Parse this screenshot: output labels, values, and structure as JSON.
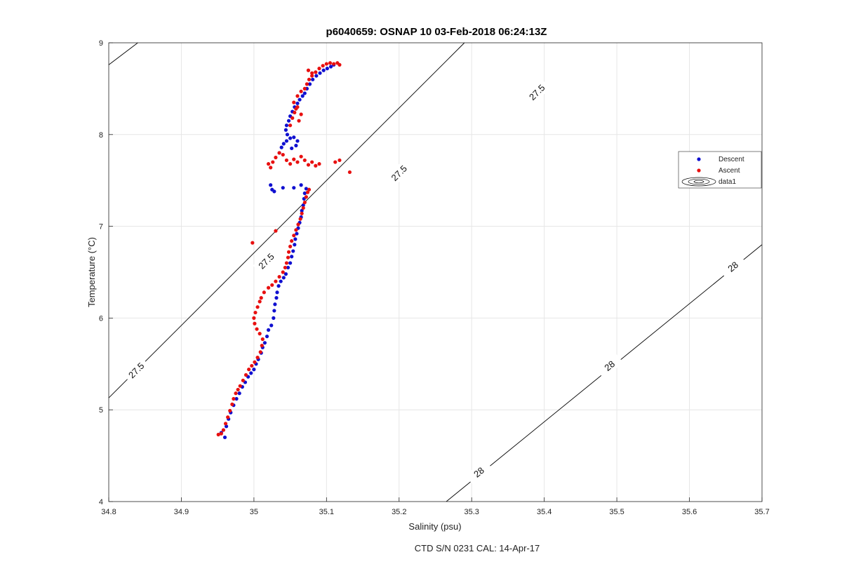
{
  "colors": {
    "descent": "#1010d0",
    "ascent": "#e81010",
    "contour": "#000000",
    "grid": "#e6e6e6",
    "axes": "#262626"
  },
  "footer": "CTD S/N 0231  CAL: 14-Apr-17",
  "chart_data": {
    "type": "scatter",
    "title": "p6040659: OSNAP 10 03-Feb-2018 06:24:13Z",
    "xlabel": "Salinity (psu)",
    "ylabel": "Temperature (°C)",
    "xlim": [
      34.8,
      35.7
    ],
    "ylim": [
      4,
      9
    ],
    "xticks": [
      "34.8",
      "34.9",
      "35",
      "35.1",
      "35.2",
      "35.3",
      "35.4",
      "35.5",
      "35.6",
      "35.7"
    ],
    "yticks": [
      "4",
      "5",
      "6",
      "7",
      "8",
      "9"
    ],
    "grid": true,
    "legend_placement": "right",
    "legend": [
      "Descent",
      "Ascent",
      "data1"
    ],
    "series": [
      {
        "name": "Descent",
        "marker": "dot",
        "points": [
          [
            34.96,
            4.7
          ],
          [
            34.955,
            4.75
          ],
          [
            34.962,
            4.82
          ],
          [
            34.965,
            4.9
          ],
          [
            34.968,
            4.97
          ],
          [
            34.972,
            5.05
          ],
          [
            34.976,
            5.12
          ],
          [
            34.98,
            5.18
          ],
          [
            34.984,
            5.25
          ],
          [
            34.988,
            5.3
          ],
          [
            34.992,
            5.36
          ],
          [
            34.996,
            5.4
          ],
          [
            35.0,
            5.44
          ],
          [
            35.003,
            5.5
          ],
          [
            35.006,
            5.55
          ],
          [
            35.01,
            5.62
          ],
          [
            35.012,
            5.68
          ],
          [
            35.015,
            5.73
          ],
          [
            35.018,
            5.8
          ],
          [
            35.02,
            5.87
          ],
          [
            35.024,
            5.92
          ],
          [
            35.027,
            6.0
          ],
          [
            35.028,
            6.08
          ],
          [
            35.029,
            6.15
          ],
          [
            35.031,
            6.22
          ],
          [
            35.032,
            6.28
          ],
          [
            35.034,
            6.35
          ],
          [
            35.037,
            6.4
          ],
          [
            35.041,
            6.44
          ],
          [
            35.044,
            6.48
          ],
          [
            35.047,
            6.55
          ],
          [
            35.05,
            6.6
          ],
          [
            35.052,
            6.67
          ],
          [
            35.054,
            6.73
          ],
          [
            35.056,
            6.8
          ],
          [
            35.057,
            6.86
          ],
          [
            35.059,
            6.92
          ],
          [
            35.061,
            6.98
          ],
          [
            35.063,
            7.04
          ],
          [
            35.065,
            7.1
          ],
          [
            35.066,
            7.17
          ],
          [
            35.068,
            7.23
          ],
          [
            35.069,
            7.3
          ],
          [
            35.07,
            7.36
          ],
          [
            35.072,
            7.41
          ],
          [
            35.065,
            7.45
          ],
          [
            35.055,
            7.42
          ],
          [
            35.04,
            7.42
          ],
          [
            35.025,
            7.4
          ],
          [
            35.023,
            7.45
          ],
          [
            35.028,
            7.38
          ],
          [
            35.035,
            7.8
          ],
          [
            35.038,
            7.86
          ],
          [
            35.041,
            7.9
          ],
          [
            35.045,
            7.93
          ],
          [
            35.05,
            7.96
          ],
          [
            35.055,
            7.97
          ],
          [
            35.06,
            7.93
          ],
          [
            35.058,
            7.88
          ],
          [
            35.052,
            7.85
          ],
          [
            35.046,
            8.0
          ],
          [
            35.044,
            8.05
          ],
          [
            35.045,
            8.1
          ],
          [
            35.048,
            8.15
          ],
          [
            35.05,
            8.2
          ],
          [
            35.053,
            8.25
          ],
          [
            35.056,
            8.3
          ],
          [
            35.06,
            8.34
          ],
          [
            35.063,
            8.38
          ],
          [
            35.067,
            8.42
          ],
          [
            35.07,
            8.45
          ],
          [
            35.073,
            8.5
          ],
          [
            35.077,
            8.55
          ],
          [
            35.081,
            8.6
          ],
          [
            35.086,
            8.64
          ],
          [
            35.091,
            8.67
          ],
          [
            35.096,
            8.7
          ],
          [
            35.101,
            8.72
          ],
          [
            35.106,
            8.74
          ],
          [
            35.11,
            8.76
          ]
        ]
      },
      {
        "name": "Ascent",
        "marker": "dot",
        "points": [
          [
            34.951,
            4.73
          ],
          [
            34.955,
            4.74
          ],
          [
            34.958,
            4.78
          ],
          [
            34.961,
            4.85
          ],
          [
            34.964,
            4.92
          ],
          [
            34.967,
            4.99
          ],
          [
            34.97,
            5.06
          ],
          [
            34.972,
            5.12
          ],
          [
            34.975,
            5.18
          ],
          [
            34.978,
            5.22
          ],
          [
            34.981,
            5.26
          ],
          [
            34.985,
            5.32
          ],
          [
            34.989,
            5.38
          ],
          [
            34.993,
            5.44
          ],
          [
            34.997,
            5.48
          ],
          [
            35.001,
            5.52
          ],
          [
            35.005,
            5.57
          ],
          [
            35.009,
            5.63
          ],
          [
            35.011,
            5.7
          ],
          [
            35.012,
            5.77
          ],
          [
            35.008,
            5.83
          ],
          [
            35.004,
            5.88
          ],
          [
            35.001,
            5.94
          ],
          [
            35.0,
            6.0
          ],
          [
            35.002,
            6.06
          ],
          [
            35.005,
            6.12
          ],
          [
            35.008,
            6.18
          ],
          [
            35.01,
            6.22
          ],
          [
            35.014,
            6.28
          ],
          [
            35.02,
            6.33
          ],
          [
            35.025,
            6.36
          ],
          [
            35.03,
            6.4
          ],
          [
            35.035,
            6.45
          ],
          [
            35.04,
            6.5
          ],
          [
            35.043,
            6.55
          ],
          [
            35.045,
            6.6
          ],
          [
            35.047,
            6.66
          ],
          [
            35.048,
            6.72
          ],
          [
            35.05,
            6.78
          ],
          [
            35.052,
            6.84
          ],
          [
            35.055,
            6.9
          ],
          [
            35.058,
            6.96
          ],
          [
            35.061,
            7.02
          ],
          [
            35.064,
            7.08
          ],
          [
            35.066,
            7.14
          ],
          [
            35.068,
            7.2
          ],
          [
            35.07,
            7.26
          ],
          [
            35.072,
            7.32
          ],
          [
            35.074,
            7.37
          ],
          [
            35.076,
            7.4
          ],
          [
            35.03,
            6.95
          ],
          [
            34.998,
            6.82
          ],
          [
            35.02,
            7.68
          ],
          [
            35.023,
            7.64
          ],
          [
            35.026,
            7.7
          ],
          [
            35.03,
            7.75
          ],
          [
            35.035,
            7.8
          ],
          [
            35.04,
            7.78
          ],
          [
            35.045,
            7.72
          ],
          [
            35.05,
            7.68
          ],
          [
            35.055,
            7.73
          ],
          [
            35.06,
            7.7
          ],
          [
            35.065,
            7.76
          ],
          [
            35.07,
            7.72
          ],
          [
            35.075,
            7.67
          ],
          [
            35.08,
            7.7
          ],
          [
            35.085,
            7.66
          ],
          [
            35.09,
            7.68
          ],
          [
            35.112,
            7.7
          ],
          [
            35.118,
            7.72
          ],
          [
            35.132,
            7.59
          ],
          [
            35.05,
            8.1
          ],
          [
            35.053,
            8.18
          ],
          [
            35.056,
            8.24
          ],
          [
            35.06,
            8.3
          ],
          [
            35.062,
            8.15
          ],
          [
            35.065,
            8.22
          ],
          [
            35.058,
            8.28
          ],
          [
            35.055,
            8.35
          ],
          [
            35.06,
            8.42
          ],
          [
            35.065,
            8.47
          ],
          [
            35.07,
            8.5
          ],
          [
            35.073,
            8.55
          ],
          [
            35.076,
            8.6
          ],
          [
            35.08,
            8.64
          ],
          [
            35.085,
            8.68
          ],
          [
            35.09,
            8.72
          ],
          [
            35.095,
            8.75
          ],
          [
            35.1,
            8.77
          ],
          [
            35.105,
            8.78
          ],
          [
            35.11,
            8.77
          ],
          [
            35.115,
            8.78
          ],
          [
            35.118,
            8.76
          ],
          [
            35.075,
            8.7
          ],
          [
            35.08,
            8.67
          ]
        ]
      },
      {
        "name": "data1",
        "type": "contour",
        "levels": [
          {
            "value": 27.5,
            "line": [
              [
                34.8,
                5.13
              ],
              [
                35.29,
                9.0
              ]
            ],
            "labels": [
              [
                34.838,
                5.43
              ],
              [
                35.017,
                6.62
              ],
              [
                35.2,
                7.58
              ],
              [
                35.39,
                8.46
              ]
            ]
          },
          {
            "value": 28,
            "line": [
              [
                35.265,
                4.0
              ],
              [
                35.7,
                6.8
              ]
            ],
            "labels": [
              [
                35.31,
                4.32
              ],
              [
                35.49,
                5.48
              ],
              [
                35.66,
                6.56
              ]
            ]
          },
          {
            "value": null,
            "line": [
              [
                34.8,
                8.76
              ],
              [
                34.84,
                9.0
              ]
            ],
            "labels": []
          }
        ],
        "level_label_text": [
          "27.5",
          "28"
        ]
      }
    ]
  }
}
